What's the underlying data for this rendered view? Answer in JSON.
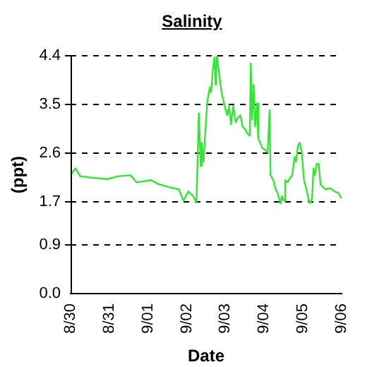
{
  "chart_data": {
    "type": "line",
    "title": "Salinity",
    "xlabel": "Date",
    "ylabel": "(ppt)",
    "x": [
      "--08-30T00:00",
      "--08-30T03:00",
      "--08-30T06:00",
      "--08-30T15:00",
      "--08-30T23:00",
      "--08-31T05:00",
      "--08-31T13:00",
      "--08-31T17:00",
      "--09-01T02:00",
      "--09-01T06:00",
      "--09-01T13:00",
      "--09-01T19:00",
      "--09-01T22:00",
      "--09-02T01:00",
      "--09-02T04:00",
      "--09-02T06:00",
      "--09-02T07:30",
      "--09-02T08:40",
      "--09-02T09:15",
      "--09-02T10:25",
      "--09-02T11:35",
      "--09-02T12:45",
      "--09-02T14:15",
      "--09-02T15:05",
      "--09-02T16:15",
      "--09-02T17:10",
      "--09-02T18:00",
      "--09-02T18:40",
      "--09-02T20:05",
      "--09-02T21:30",
      "--09-02T23:50",
      "--09-03T01:05",
      "--09-03T02:15",
      "--09-03T03:25",
      "--09-03T04:50",
      "--09-03T06:20",
      "--09-03T07:45",
      "--09-03T09:15",
      "--09-03T10:40",
      "--09-03T12:10",
      "--09-03T13:40",
      "--09-03T15:05",
      "--09-03T15:40",
      "--09-03T16:30",
      "--09-03T17:25",
      "--09-03T18:20",
      "--09-03T19:30",
      "--09-03T20:20",
      "--09-03T21:30",
      "--09-03T22:40",
      "--09-04T00:25",
      "--09-04T02:10",
      "--09-04T03:20",
      "--09-04T03:55",
      "--09-04T05:40",
      "--09-04T07:10",
      "--09-04T08:35",
      "--09-04T10:05",
      "--09-04T10:55",
      "--09-04T12:10",
      "--09-04T13:00",
      "--09-04T14:30",
      "--09-04T15:55",
      "--09-04T17:25",
      "--09-04T18:50",
      "--09-04T19:45",
      "--09-04T20:55",
      "--09-04T22:05",
      "--09-04T23:15",
      "--09-05T00:40",
      "--09-05T02:10",
      "--09-05T03:40",
      "--09-05T04:30",
      "--09-05T05:40",
      "--09-05T06:35",
      "--09-05T07:25",
      "--09-05T08:35",
      "--09-05T09:45",
      "--09-05T10:55",
      "--09-05T13:50",
      "--09-05T16:45",
      "--09-05T19:40",
      "--09-05T22:00",
      "--09-06T00:00"
    ],
    "series": [
      {
        "color": "#33e633",
        "values": [
          2.19,
          2.32,
          2.17,
          2.14,
          2.12,
          2.17,
          2.19,
          2.06,
          2.1,
          2.03,
          1.97,
          1.93,
          1.72,
          1.89,
          1.8,
          1.69,
          3.34,
          2.36,
          2.79,
          2.44,
          3.04,
          3.56,
          3.82,
          3.73,
          4.16,
          4.37,
          3.86,
          4.4,
          4.07,
          3.73,
          3.43,
          3.3,
          3.47,
          3.13,
          3.47,
          3.17,
          3.26,
          3.3,
          3.09,
          3.04,
          2.96,
          2.92,
          4.26,
          3.22,
          3.86,
          3.09,
          3.52,
          2.87,
          2.79,
          2.7,
          2.66,
          2.62,
          3.39,
          2.19,
          2.1,
          1.93,
          1.84,
          1.67,
          1.8,
          1.72,
          2.1,
          2.06,
          2.14,
          2.19,
          2.53,
          2.44,
          2.74,
          2.79,
          2.62,
          2.1,
          1.93,
          1.72,
          1.67,
          1.76,
          2.32,
          2.19,
          2.4,
          2.4,
          2.02,
          1.93,
          1.95,
          1.89,
          1.86,
          1.76
        ]
      }
    ],
    "xlim": [
      "--08-30",
      "--09-06"
    ],
    "xticks": [
      {
        "value": "--08-30",
        "label": "8/30"
      },
      {
        "value": "--08-31",
        "label": "8/31"
      },
      {
        "value": "--09-01",
        "label": "9/01"
      },
      {
        "value": "--09-02",
        "label": "9/02"
      },
      {
        "value": "--09-03",
        "label": "9/03"
      },
      {
        "value": "--09-04",
        "label": "9/04"
      },
      {
        "value": "--09-05",
        "label": "9/05"
      },
      {
        "value": "--09-06",
        "label": "9/06"
      }
    ],
    "ylim": [
      0,
      4.4
    ],
    "yticks": [
      {
        "value": 0,
        "label": "0.0"
      },
      0.9,
      1.7,
      2.6,
      3.5,
      4.4
    ],
    "grid": "y",
    "legend": false,
    "marker": "none",
    "line_style": "solid"
  }
}
